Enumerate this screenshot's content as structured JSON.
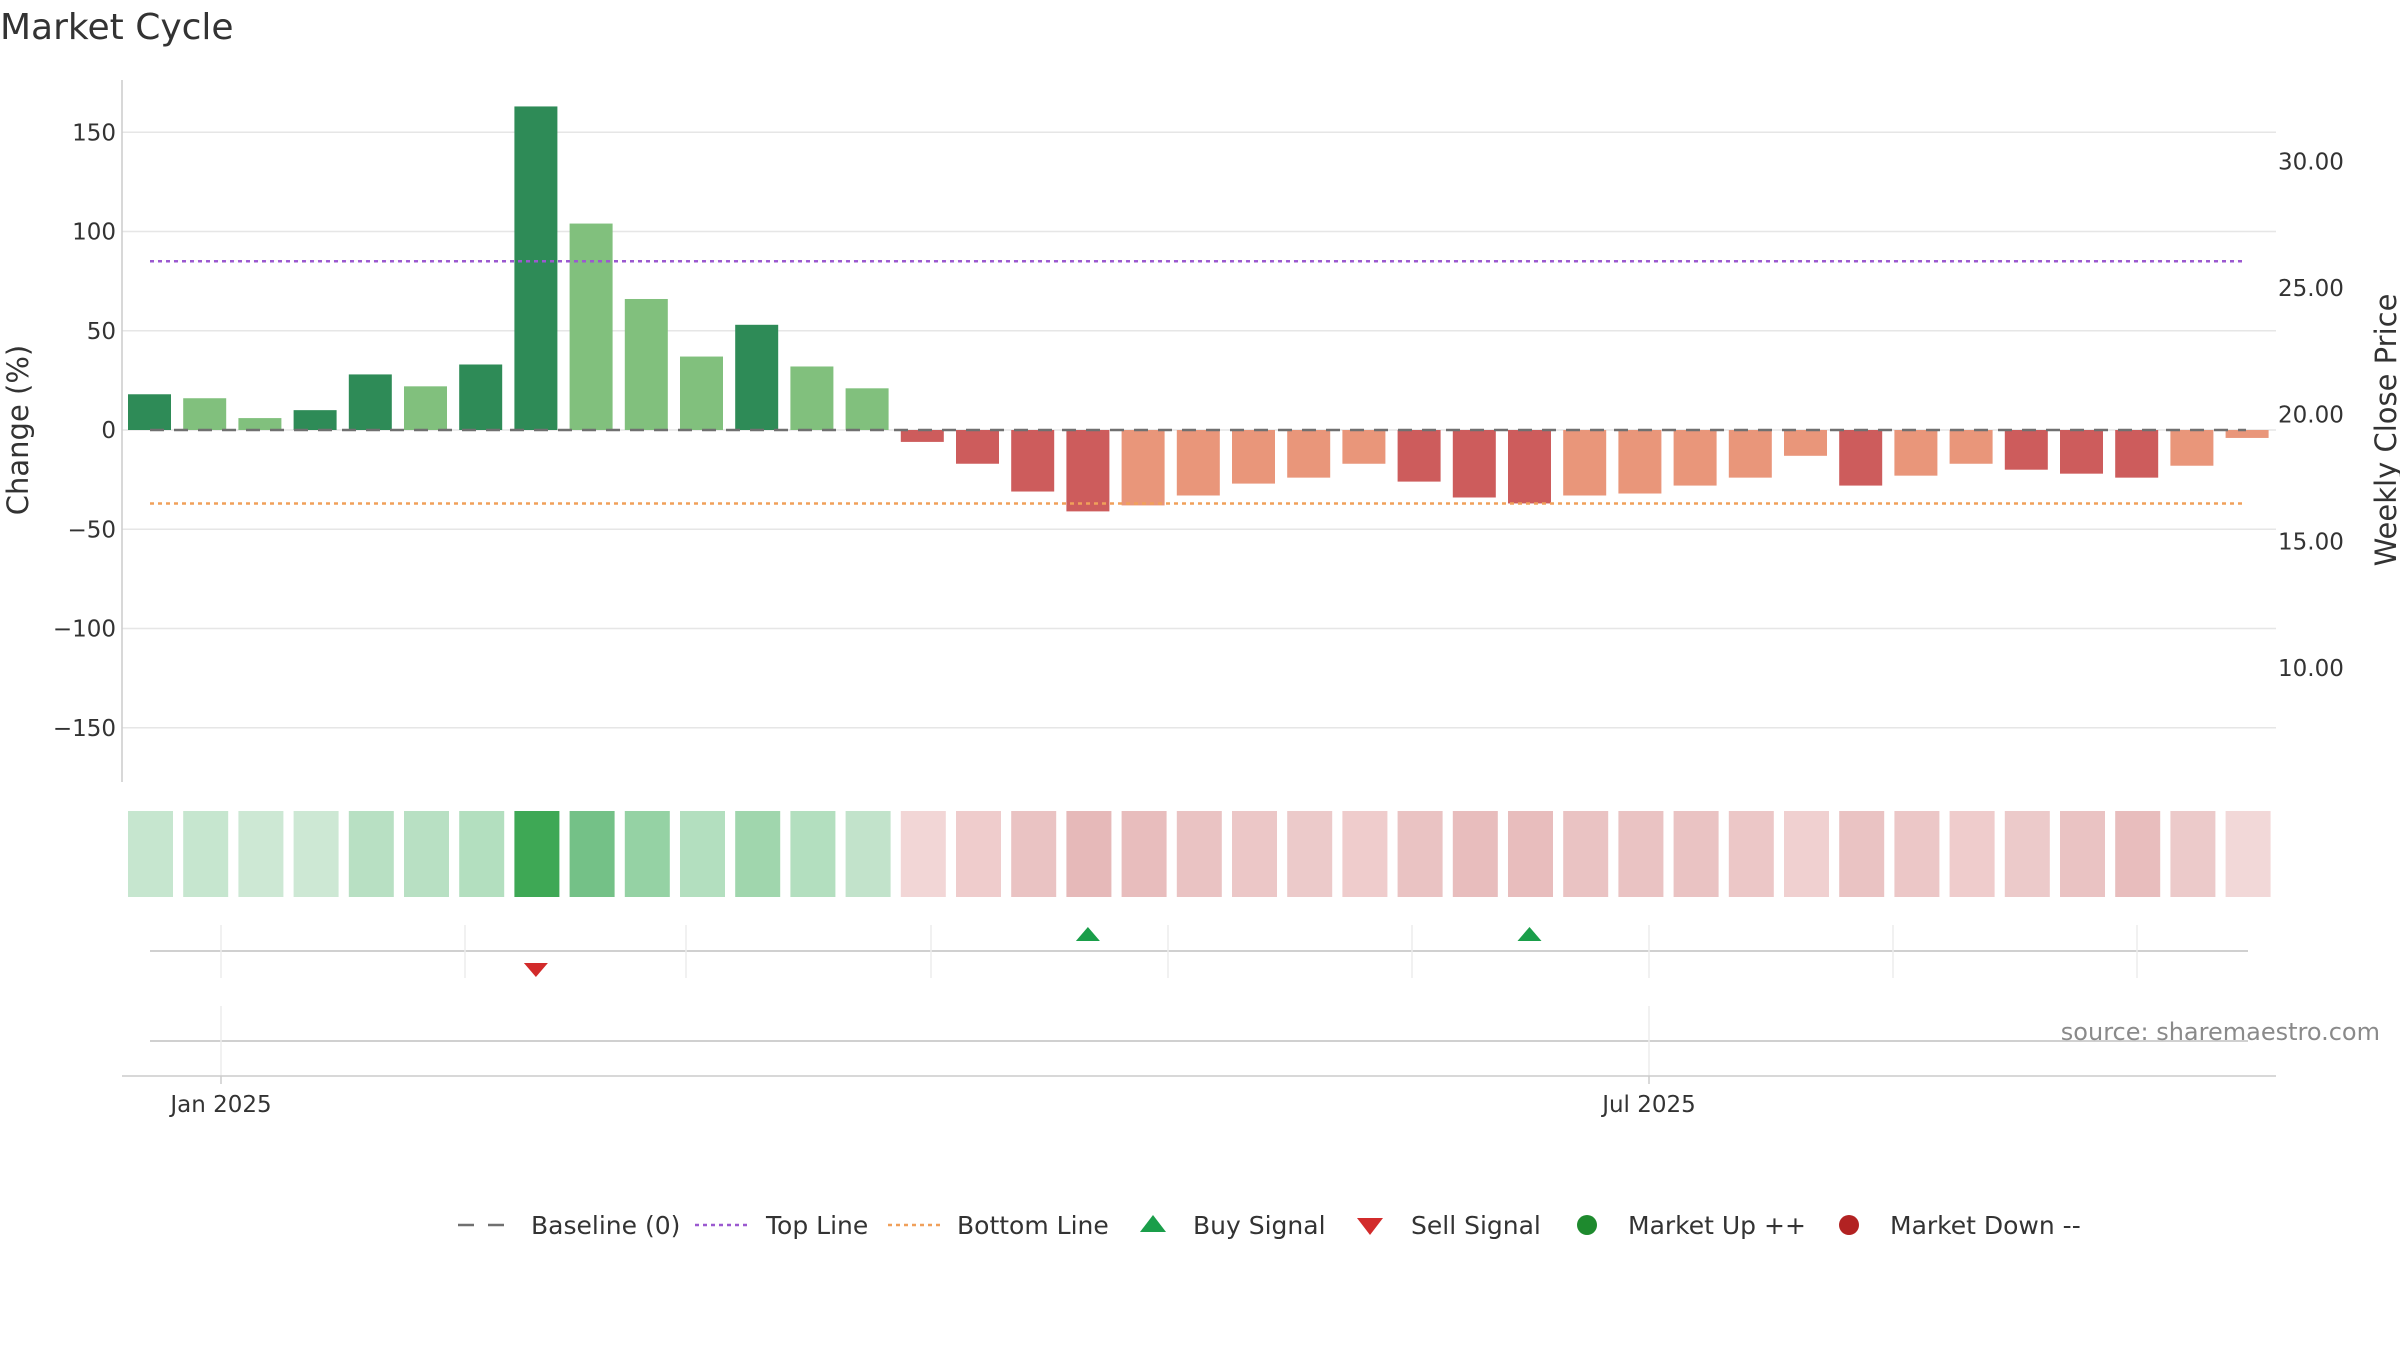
{
  "chart_data": {
    "type": "bar",
    "title": "Market Cycle",
    "ylabel": "Change (%)",
    "y2label": "Weekly Close Price",
    "ylim": [
      -178,
      178
    ],
    "yticks": [
      150,
      100,
      50,
      0,
      -50,
      -100,
      -150
    ],
    "ytick_labels": [
      "150",
      "100",
      "50",
      "0",
      "−50",
      "−100",
      "−150"
    ],
    "y2lim": [
      5.5,
      34.0
    ],
    "y2ticks": [
      30,
      25,
      20,
      15,
      10
    ],
    "y2tick_labels": [
      "30.00",
      "25.00",
      "20.00",
      "15.00",
      "10.00"
    ],
    "xticks": [
      "Jan 2025",
      "Jul 2025"
    ],
    "top_line": 85,
    "bottom_line": -37,
    "baseline": 0,
    "bar_values": [
      18,
      16,
      6,
      10,
      28,
      22,
      33,
      163,
      104,
      66,
      37,
      53,
      32,
      21,
      -6,
      -17,
      -31,
      -41,
      -38,
      -33,
      -27,
      -24,
      -17,
      -26,
      -34,
      -37,
      -33,
      -32,
      -28,
      -24,
      -13,
      -28,
      -23,
      -17,
      -20,
      -22,
      -24,
      -18,
      -4
    ],
    "bar_colors": [
      "#2e8b57",
      "#81c07d",
      "#81c07d",
      "#2e8b57",
      "#2e8b57",
      "#81c07d",
      "#2e8b57",
      "#2e8b57",
      "#81c07d",
      "#81c07d",
      "#81c07d",
      "#2e8b57",
      "#81c07d",
      "#81c07d",
      "#cd5c5c",
      "#cd5c5c",
      "#cd5c5c",
      "#cd5c5c",
      "#e9967a",
      "#e9967a",
      "#e9967a",
      "#e9967a",
      "#e9967a",
      "#cd5c5c",
      "#cd5c5c",
      "#cd5c5c",
      "#e9967a",
      "#e9967a",
      "#e9967a",
      "#e9967a",
      "#e9967a",
      "#cd5c5c",
      "#e9967a",
      "#e9967a",
      "#cd5c5c",
      "#cd5c5c",
      "#cd5c5c",
      "#e9967a",
      "#e9967a"
    ],
    "strip_colors": [
      "#c6e6cf",
      "#c6e6cf",
      "#cde8d4",
      "#cde8d4",
      "#b8e0c3",
      "#b8e0c3",
      "#b3dfbf",
      "#3ea855",
      "#74c187",
      "#95d2a4",
      "#b3dfbf",
      "#a0d6ad",
      "#b3dfbf",
      "#c2e3cb",
      "#f2d6d6",
      "#efcccc",
      "#eac3c3",
      "#e6b9b9",
      "#e8bdbd",
      "#eac3c3",
      "#ecc7c7",
      "#eccaca",
      "#efcccc",
      "#eac3c3",
      "#e8bdbd",
      "#e8bdbd",
      "#eac3c3",
      "#eac3c3",
      "#eac3c3",
      "#ecc7c7",
      "#f0d0d0",
      "#eac3c3",
      "#ecc7c7",
      "#efcccc",
      "#eccaca",
      "#eac3c3",
      "#e8bdbd",
      "#eccaca",
      "#f2d8d8"
    ],
    "signals": [
      {
        "week": 7,
        "type": "sell"
      },
      {
        "week": 17,
        "type": "buy"
      },
      {
        "week": 25,
        "type": "buy"
      }
    ],
    "legend": [
      {
        "label": "Baseline (0)",
        "symbol": "dash",
        "color": "#707070"
      },
      {
        "label": "Top Line",
        "symbol": "dotted",
        "color": "#9b59d0"
      },
      {
        "label": "Bottom Line",
        "symbol": "dotted",
        "color": "#f0a05a"
      },
      {
        "label": "Buy Signal",
        "symbol": "triangle-up",
        "color": "#1a9e4a"
      },
      {
        "label": "Sell Signal",
        "symbol": "triangle-down",
        "color": "#d22b2b"
      },
      {
        "label": "Market Up ++",
        "symbol": "circle",
        "color": "#1e8a2e"
      },
      {
        "label": "Market Down --",
        "symbol": "circle",
        "color": "#b22222"
      }
    ],
    "source": "source: sharemaestro.com",
    "colors": {
      "top_line": "#9b59d0",
      "bottom_line": "#f0a05a",
      "baseline": "#707070",
      "grid": "#e6e6e6",
      "buy": "#1a9e4a",
      "sell": "#d22b2b"
    }
  }
}
